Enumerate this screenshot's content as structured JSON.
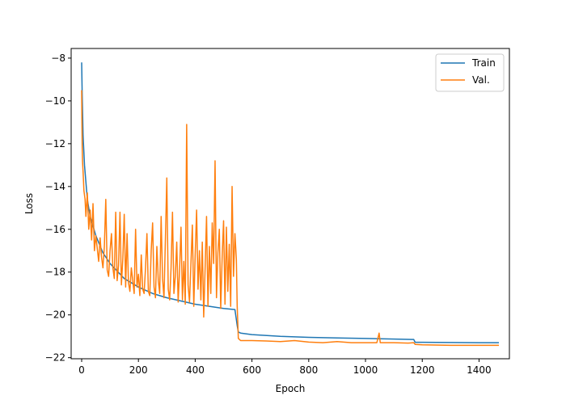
{
  "chart_data": {
    "type": "line",
    "xlabel": "Epoch",
    "ylabel": "Loss",
    "xlim": [
      -37,
      1507
    ],
    "ylim": [
      -22.05,
      -7.55
    ],
    "xticks": [
      0,
      200,
      400,
      600,
      800,
      1000,
      1200,
      1400
    ],
    "yticks": [
      -22,
      -20,
      -18,
      -16,
      -14,
      -12,
      -10,
      -8
    ],
    "legend_position": "top-right",
    "grid": false,
    "series": [
      {
        "name": "Train",
        "color": "#1f77b4",
        "x": [
          0,
          2,
          5,
          10,
          20,
          30,
          50,
          75,
          100,
          150,
          200,
          250,
          300,
          350,
          400,
          450,
          500,
          540,
          548,
          552,
          560,
          600,
          700,
          800,
          900,
          1000,
          1100,
          1170,
          1175,
          1200,
          1300,
          1400,
          1470
        ],
        "y": [
          -8.2,
          -9.8,
          -11.6,
          -13.0,
          -14.6,
          -15.4,
          -16.3,
          -17.1,
          -17.6,
          -18.3,
          -18.7,
          -19.0,
          -19.2,
          -19.35,
          -19.5,
          -19.6,
          -19.7,
          -19.75,
          -20.5,
          -20.8,
          -20.85,
          -20.92,
          -21.0,
          -21.05,
          -21.08,
          -21.1,
          -21.13,
          -21.15,
          -21.28,
          -21.28,
          -21.29,
          -21.3,
          -21.3
        ]
      },
      {
        "name": "Val.",
        "color": "#ff7f0e",
        "x": [
          0,
          1,
          2,
          3,
          5,
          8,
          12,
          15,
          20,
          25,
          30,
          35,
          40,
          45,
          50,
          55,
          60,
          65,
          70,
          75,
          80,
          85,
          90,
          95,
          100,
          105,
          110,
          115,
          120,
          125,
          130,
          135,
          140,
          145,
          150,
          155,
          160,
          165,
          170,
          175,
          180,
          185,
          190,
          195,
          200,
          205,
          210,
          215,
          220,
          225,
          230,
          235,
          240,
          245,
          250,
          255,
          260,
          265,
          270,
          275,
          280,
          285,
          290,
          295,
          300,
          305,
          310,
          315,
          320,
          325,
          330,
          335,
          340,
          345,
          350,
          355,
          360,
          365,
          370,
          375,
          380,
          385,
          390,
          395,
          400,
          405,
          410,
          415,
          420,
          425,
          430,
          435,
          440,
          445,
          450,
          455,
          460,
          465,
          470,
          475,
          480,
          485,
          490,
          495,
          500,
          505,
          510,
          515,
          520,
          525,
          530,
          535,
          540,
          545,
          548,
          552,
          560,
          580,
          600,
          650,
          700,
          750,
          800,
          850,
          900,
          950,
          1000,
          1040,
          1048,
          1052,
          1056,
          1100,
          1150,
          1170,
          1175,
          1200,
          1300,
          1400,
          1470
        ],
        "y": [
          -9.5,
          -11.0,
          -12.2,
          -12.8,
          -13.3,
          -14.2,
          -14.6,
          -15.4,
          -14.3,
          -16.0,
          -15.1,
          -16.5,
          -14.8,
          -17.0,
          -16.3,
          -16.9,
          -17.5,
          -16.4,
          -17.3,
          -17.8,
          -16.8,
          -14.6,
          -17.9,
          -18.2,
          -17.0,
          -16.2,
          -17.8,
          -18.3,
          -15.2,
          -18.4,
          -17.7,
          -15.2,
          -18.6,
          -17.4,
          -15.3,
          -18.7,
          -16.2,
          -18.5,
          -18.9,
          -17.8,
          -18.4,
          -19.0,
          -16.0,
          -18.7,
          -18.1,
          -19.1,
          -17.2,
          -18.8,
          -19.0,
          -17.8,
          -16.2,
          -18.9,
          -19.1,
          -17.0,
          -15.7,
          -18.7,
          -19.2,
          -16.8,
          -18.4,
          -19.0,
          -15.4,
          -18.3,
          -19.2,
          -16.5,
          -13.6,
          -18.8,
          -19.3,
          -17.8,
          -15.2,
          -19.0,
          -18.2,
          -16.6,
          -19.4,
          -17.9,
          -15.9,
          -19.3,
          -17.5,
          -19.5,
          -11.1,
          -18.6,
          -19.4,
          -17.6,
          -15.8,
          -19.6,
          -17.2,
          -15.1,
          -18.8,
          -17.0,
          -19.3,
          -16.6,
          -20.1,
          -17.8,
          -15.4,
          -19.6,
          -16.8,
          -19.0,
          -15.7,
          -17.6,
          -12.8,
          -19.2,
          -17.1,
          -16.0,
          -19.7,
          -17.3,
          -15.6,
          -19.5,
          -15.9,
          -18.9,
          -16.7,
          -19.6,
          -14.0,
          -18.2,
          -16.2,
          -17.4,
          -19.6,
          -21.1,
          -21.2,
          -21.2,
          -21.2,
          -21.22,
          -21.25,
          -21.2,
          -21.27,
          -21.3,
          -21.25,
          -21.3,
          -21.3,
          -21.3,
          -20.85,
          -21.3,
          -21.3,
          -21.3,
          -21.32,
          -21.3,
          -21.38,
          -21.4,
          -21.42,
          -21.42,
          -21.42
        ]
      }
    ]
  }
}
